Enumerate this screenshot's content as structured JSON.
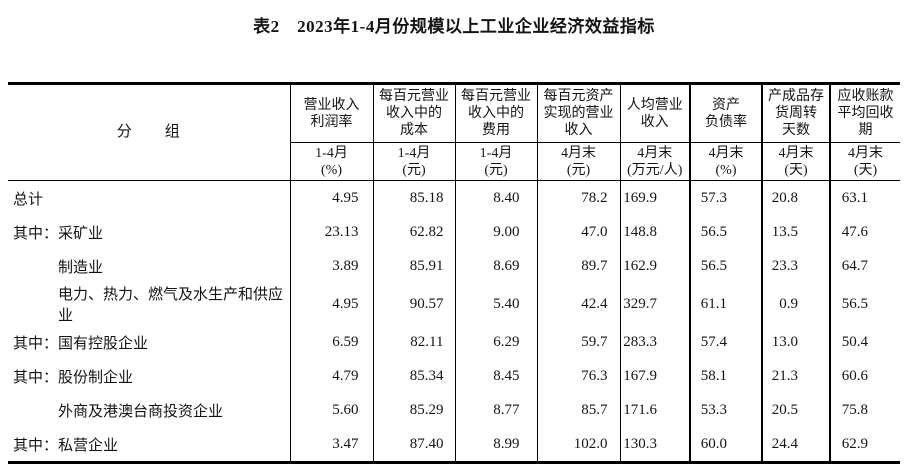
{
  "title": "表2　2023年1-4月份规模以上工业企业经济效益指标",
  "table": {
    "group_header": "分　　组",
    "columns": [
      {
        "label": "营业收入\n利润率",
        "sub": "1-4月\n(%)"
      },
      {
        "label": "每百元营业\n收入中的\n成本",
        "sub": "1-4月\n(元)"
      },
      {
        "label": "每百元营业\n收入中的\n费用",
        "sub": "1-4月\n(元)"
      },
      {
        "label": "每百元资产\n实现的营业\n收入",
        "sub": "4月末\n(元)"
      },
      {
        "label": "人均营业\n收入",
        "sub": "4月末\n(万元/人)"
      },
      {
        "label": "资产\n负债率",
        "sub": "4月末\n(%)"
      },
      {
        "label": "产成品存\n货周转\n天数",
        "sub": "4月末\n(天)"
      },
      {
        "label": "应收账款\n平均回收\n期",
        "sub": "4月末\n(天)"
      }
    ],
    "rows": [
      {
        "label": "总计",
        "indent": false,
        "values": [
          "4.95",
          "85.18",
          "8.40",
          "78.2",
          "169.9",
          "57.3",
          "20.8",
          "63.1"
        ]
      },
      {
        "label": "其中：采矿业",
        "indent": false,
        "values": [
          "23.13",
          "62.82",
          "9.00",
          "47.0",
          "148.8",
          "56.5",
          "13.5",
          "47.6"
        ]
      },
      {
        "label": "制造业",
        "indent": true,
        "values": [
          "3.89",
          "85.91",
          "8.69",
          "89.7",
          "162.9",
          "56.5",
          "23.3",
          "64.7"
        ]
      },
      {
        "label": "电力、热力、燃气及水生产和供应业",
        "indent": true,
        "values": [
          "4.95",
          "90.57",
          "5.40",
          "42.4",
          "329.7",
          "61.1",
          "0.9",
          "56.5"
        ]
      },
      {
        "label": "其中：国有控股企业",
        "indent": false,
        "values": [
          "6.59",
          "82.11",
          "6.29",
          "59.7",
          "283.3",
          "57.4",
          "13.0",
          "50.4"
        ]
      },
      {
        "label": "其中：股份制企业",
        "indent": false,
        "values": [
          "4.79",
          "85.34",
          "8.45",
          "76.3",
          "167.9",
          "58.1",
          "21.3",
          "60.6"
        ]
      },
      {
        "label": "外商及港澳台商投资企业",
        "indent": true,
        "values": [
          "5.60",
          "85.29",
          "8.77",
          "85.7",
          "171.6",
          "53.3",
          "20.5",
          "75.8"
        ]
      },
      {
        "label": "其中：私营企业",
        "indent": false,
        "values": [
          "3.47",
          "87.40",
          "8.99",
          "102.0",
          "130.3",
          "60.0",
          "24.4",
          "62.9"
        ]
      }
    ],
    "border_color": "#000000",
    "text_color": "#141414",
    "background_color": "#ffffff"
  }
}
